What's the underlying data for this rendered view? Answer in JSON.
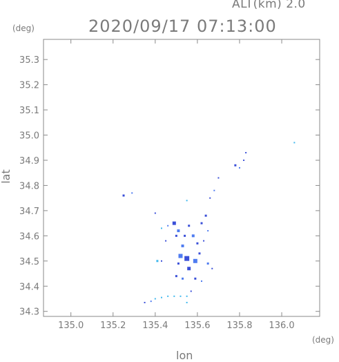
{
  "header": {
    "altitude": "ALT(km) 2.0",
    "timestamp": "2020/09/17 07:13:00"
  },
  "chart_data": {
    "type": "scatter",
    "title": "2020/09/17 07:13:00",
    "xlabel": "lon",
    "ylabel": "lat",
    "x_unit": "(deg)",
    "y_unit": "(deg)",
    "xlim": [
      134.87,
      136.18
    ],
    "ylim": [
      34.28,
      35.38
    ],
    "x_ticks": [
      135.0,
      135.2,
      135.4,
      135.6,
      135.8,
      136.0
    ],
    "x_tick_labels": [
      "135.0",
      "135.2",
      "135.4",
      "135.6",
      "135.8",
      "136.0"
    ],
    "y_ticks": [
      34.3,
      34.4,
      34.5,
      34.6,
      34.7,
      34.8,
      34.9,
      35.0,
      35.1,
      35.2,
      35.3
    ],
    "y_tick_labels": [
      "34.3",
      "34.4",
      "34.5",
      "34.6",
      "34.7",
      "34.8",
      "34.9",
      "35.0",
      "35.1",
      "35.2",
      "35.3"
    ],
    "colors": {
      "strong": "#3a4fd8",
      "medium": "#4f7cf0",
      "light": "#3fb8ee"
    },
    "points": [
      {
        "lon": 135.25,
        "lat": 34.76,
        "size": 3,
        "level": "strong"
      },
      {
        "lon": 135.29,
        "lat": 34.77,
        "size": 2,
        "level": "medium"
      },
      {
        "lon": 135.4,
        "lat": 34.69,
        "size": 2,
        "level": "strong"
      },
      {
        "lon": 135.43,
        "lat": 34.63,
        "size": 2,
        "level": "light"
      },
      {
        "lon": 135.46,
        "lat": 34.64,
        "size": 2,
        "level": "medium"
      },
      {
        "lon": 135.45,
        "lat": 34.58,
        "size": 2,
        "level": "strong"
      },
      {
        "lon": 135.49,
        "lat": 34.65,
        "size": 5,
        "level": "strong"
      },
      {
        "lon": 135.51,
        "lat": 34.62,
        "size": 4,
        "level": "medium"
      },
      {
        "lon": 135.5,
        "lat": 34.6,
        "size": 3,
        "level": "strong"
      },
      {
        "lon": 135.53,
        "lat": 34.56,
        "size": 4,
        "level": "medium"
      },
      {
        "lon": 135.54,
        "lat": 34.6,
        "size": 3,
        "level": "strong"
      },
      {
        "lon": 135.56,
        "lat": 34.64,
        "size": 3,
        "level": "strong"
      },
      {
        "lon": 135.58,
        "lat": 34.6,
        "size": 4,
        "level": "medium"
      },
      {
        "lon": 135.6,
        "lat": 34.57,
        "size": 3,
        "level": "strong"
      },
      {
        "lon": 135.62,
        "lat": 34.65,
        "size": 3,
        "level": "strong"
      },
      {
        "lon": 135.64,
        "lat": 34.68,
        "size": 3,
        "level": "strong"
      },
      {
        "lon": 135.65,
        "lat": 34.62,
        "size": 2,
        "level": "medium"
      },
      {
        "lon": 135.63,
        "lat": 34.58,
        "size": 2,
        "level": "strong"
      },
      {
        "lon": 135.52,
        "lat": 34.52,
        "size": 6,
        "level": "medium"
      },
      {
        "lon": 135.55,
        "lat": 34.51,
        "size": 7,
        "level": "strong"
      },
      {
        "lon": 135.59,
        "lat": 34.5,
        "size": 6,
        "level": "medium"
      },
      {
        "lon": 135.56,
        "lat": 34.47,
        "size": 5,
        "level": "strong"
      },
      {
        "lon": 135.51,
        "lat": 34.49,
        "size": 3,
        "level": "strong"
      },
      {
        "lon": 135.61,
        "lat": 34.53,
        "size": 3,
        "level": "strong"
      },
      {
        "lon": 135.65,
        "lat": 34.49,
        "size": 3,
        "level": "medium"
      },
      {
        "lon": 135.67,
        "lat": 34.47,
        "size": 2,
        "level": "strong"
      },
      {
        "lon": 135.41,
        "lat": 34.5,
        "size": 3,
        "level": "light"
      },
      {
        "lon": 135.43,
        "lat": 34.5,
        "size": 2,
        "level": "strong"
      },
      {
        "lon": 135.5,
        "lat": 34.44,
        "size": 3,
        "level": "strong"
      },
      {
        "lon": 135.53,
        "lat": 34.43,
        "size": 3,
        "level": "medium"
      },
      {
        "lon": 135.59,
        "lat": 34.43,
        "size": 3,
        "level": "strong"
      },
      {
        "lon": 135.62,
        "lat": 34.42,
        "size": 2,
        "level": "medium"
      },
      {
        "lon": 135.57,
        "lat": 34.38,
        "size": 2,
        "level": "strong"
      },
      {
        "lon": 135.35,
        "lat": 34.335,
        "size": 2,
        "level": "strong"
      },
      {
        "lon": 135.38,
        "lat": 34.34,
        "size": 2,
        "level": "medium"
      },
      {
        "lon": 135.4,
        "lat": 34.35,
        "size": 2,
        "level": "light"
      },
      {
        "lon": 135.43,
        "lat": 34.355,
        "size": 2,
        "level": "light"
      },
      {
        "lon": 135.46,
        "lat": 34.36,
        "size": 2,
        "level": "light"
      },
      {
        "lon": 135.49,
        "lat": 34.36,
        "size": 2,
        "level": "light"
      },
      {
        "lon": 135.52,
        "lat": 34.36,
        "size": 2,
        "level": "light"
      },
      {
        "lon": 135.55,
        "lat": 34.36,
        "size": 2,
        "level": "light"
      },
      {
        "lon": 135.55,
        "lat": 34.335,
        "size": 2,
        "level": "light"
      },
      {
        "lon": 135.66,
        "lat": 34.75,
        "size": 2,
        "level": "strong"
      },
      {
        "lon": 135.68,
        "lat": 34.78,
        "size": 2,
        "level": "medium"
      },
      {
        "lon": 135.7,
        "lat": 34.83,
        "size": 2,
        "level": "strong"
      },
      {
        "lon": 135.78,
        "lat": 34.88,
        "size": 3,
        "level": "strong"
      },
      {
        "lon": 135.8,
        "lat": 34.87,
        "size": 2,
        "level": "medium"
      },
      {
        "lon": 135.82,
        "lat": 34.9,
        "size": 2,
        "level": "strong"
      },
      {
        "lon": 135.83,
        "lat": 34.93,
        "size": 2,
        "level": "strong"
      },
      {
        "lon": 135.55,
        "lat": 34.74,
        "size": 2,
        "level": "light"
      },
      {
        "lon": 136.06,
        "lat": 34.97,
        "size": 2,
        "level": "light"
      }
    ]
  }
}
